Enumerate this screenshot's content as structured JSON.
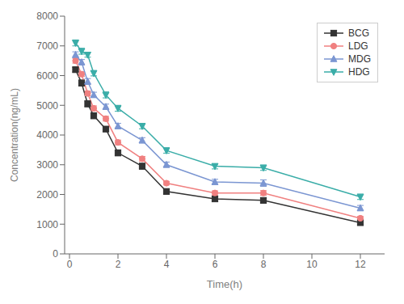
{
  "chart_data": {
    "type": "line",
    "x": [
      0.25,
      0.5,
      0.75,
      1.0,
      1.5,
      2.0,
      3.0,
      4.0,
      6.0,
      8.0,
      12.0
    ],
    "series": [
      {
        "name": "BCG",
        "color": "#333333",
        "marker": "square",
        "values": [
          6200,
          5750,
          5050,
          4650,
          4200,
          3400,
          2950,
          2100,
          1850,
          1800,
          1050
        ],
        "errors": [
          80,
          100,
          100,
          100,
          80,
          100,
          100,
          80,
          70,
          70,
          70
        ]
      },
      {
        "name": "LDG",
        "color": "#f08080",
        "marker": "circle",
        "values": [
          6500,
          6050,
          5400,
          4900,
          4550,
          3750,
          3200,
          2380,
          2050,
          2050,
          1200
        ],
        "errors": [
          80,
          80,
          80,
          80,
          80,
          80,
          80,
          60,
          70,
          80,
          60
        ]
      },
      {
        "name": "MDG",
        "color": "#7b96d2",
        "marker": "triangle-up",
        "values": [
          6700,
          6450,
          5800,
          5350,
          4950,
          4300,
          3820,
          3000,
          2420,
          2380,
          1540
        ],
        "errors": [
          100,
          90,
          100,
          90,
          90,
          90,
          90,
          90,
          90,
          110,
          90
        ]
      },
      {
        "name": "HDG",
        "color": "#3aada8",
        "marker": "triangle-down",
        "values": [
          7100,
          6820,
          6700,
          6080,
          5350,
          4900,
          4300,
          3480,
          2950,
          2900,
          1920
        ],
        "errors": [
          100,
          100,
          80,
          90,
          100,
          100,
          90,
          90,
          90,
          90,
          90
        ]
      }
    ],
    "xlabel": "Time(h)",
    "ylabel": "Concentration(ng/mL)",
    "xlim": [
      -0.2,
      13
    ],
    "ylim": [
      0,
      8000
    ],
    "xticks": [
      0,
      2,
      4,
      6,
      8,
      10,
      12
    ],
    "yticks": [
      0,
      1000,
      2000,
      3000,
      4000,
      5000,
      6000,
      7000,
      8000
    ],
    "legend": "upper right",
    "grid": false
  }
}
